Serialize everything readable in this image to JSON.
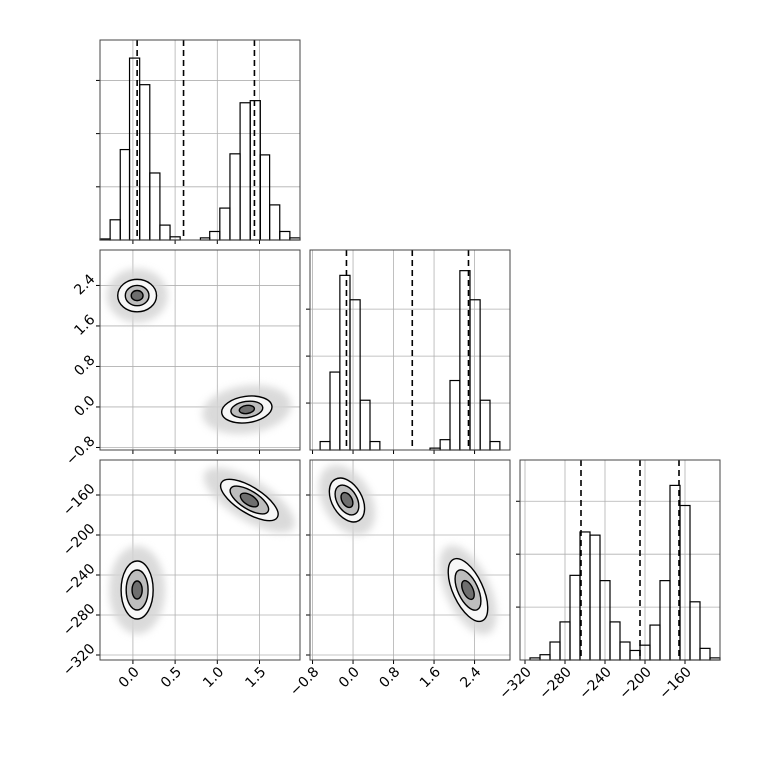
{
  "chart_data": {
    "type": "corner",
    "grid": true,
    "line_color": "#000000",
    "grid_color": "#b0b0b0",
    "level_colors": [
      "#d4d4d4",
      "#f7f7f7",
      "#bdbdbd",
      "#6e6e6e"
    ],
    "params": [
      {
        "lim": [
          -0.39,
          1.98
        ],
        "ticks": [
          {
            "value": 0,
            "label": "0.0"
          },
          0.5,
          {
            "value": 1,
            "label": "1.0"
          },
          1.5
        ],
        "bins": [
          -0.39,
          -0.27,
          -0.15,
          -0.04,
          0.08,
          0.2,
          0.32,
          0.44,
          0.56,
          0.68,
          0.8,
          0.91,
          1.03,
          1.15,
          1.27,
          1.39,
          1.51,
          1.62,
          1.74,
          1.86,
          1.98
        ],
        "counts": [
          1,
          19,
          85,
          171,
          146,
          63,
          14,
          3,
          0,
          0,
          2,
          8,
          30,
          81,
          129,
          131,
          80,
          33,
          8,
          2
        ],
        "count_lim": [
          0,
          188
        ],
        "count_ticks": [
          50,
          100,
          150
        ],
        "quantiles": [
          0.05,
          0.6,
          1.44
        ]
      },
      {
        "lim": [
          -0.85,
          3.1
        ],
        "ticks": [
          {
            "value": -0.8,
            "label": "−0.8"
          },
          {
            "value": 0,
            "label": "0.0"
          },
          0.8,
          1.6,
          2.4
        ],
        "bins": [
          -0.85,
          -0.65,
          -0.455,
          -0.26,
          -0.06,
          0.14,
          0.335,
          0.53,
          0.73,
          0.93,
          1.125,
          1.32,
          1.52,
          1.72,
          1.915,
          2.11,
          2.31,
          2.51,
          2.705,
          2.9,
          3.1
        ],
        "counts": [
          0,
          9,
          83,
          186,
          160,
          53,
          9,
          0,
          0,
          0,
          0,
          0,
          2,
          11,
          74,
          191,
          160,
          53,
          9,
          0
        ],
        "count_lim": [
          0,
          213
        ],
        "count_ticks": [
          50,
          100,
          150
        ],
        "quantiles": [
          -0.13,
          1.17,
          2.28
        ]
      },
      {
        "lim": [
          -325,
          -125
        ],
        "ticks": [
          {
            "value": -320,
            "label": "−320"
          },
          {
            "value": -280,
            "label": "−280"
          },
          {
            "value": -240,
            "label": "−240"
          },
          {
            "value": -200,
            "label": "−200"
          },
          {
            "value": -160,
            "label": "−160"
          }
        ],
        "bins": [
          -325,
          -315,
          -305,
          -295,
          -285,
          -275,
          -265,
          -255,
          -245,
          -235,
          -225,
          -215,
          -205,
          -195,
          -185,
          -175,
          -165,
          -155,
          -145,
          -135,
          -125
        ],
        "counts": [
          0,
          2,
          5,
          17,
          36,
          80,
          121,
          118,
          75,
          36,
          17,
          9,
          14,
          33,
          75,
          165,
          146,
          55,
          11,
          2
        ],
        "count_lim": [
          0,
          189
        ],
        "count_ticks": [
          50,
          100,
          150
        ],
        "quantiles": [
          -264,
          -205,
          -166
        ]
      }
    ],
    "pairs": [
      {
        "clusters": [
          {
            "x": 0.05,
            "y": 2.2,
            "angle": 0,
            "rx": [
              0.36,
              0.23,
              0.14,
              0.07
            ],
            "ry": [
              0.53,
              0.32,
              0.2,
              0.1
            ]
          },
          {
            "x": 1.35,
            "y": -0.05,
            "angle": -8,
            "rx": [
              0.53,
              0.3,
              0.19,
              0.09
            ],
            "ry": [
              0.47,
              0.26,
              0.16,
              0.08
            ]
          }
        ]
      },
      {
        "clusters": [
          {
            "x": 1.38,
            "y": -165,
            "angle": 32,
            "rx": [
              0.62,
              0.39,
              0.26,
              0.12
            ],
            "ry": [
              20,
              13,
              9,
              5
            ]
          },
          {
            "x": 0.05,
            "y": -255,
            "angle": 0,
            "rx": [
              0.33,
              0.19,
              0.13,
              0.06
            ],
            "ry": [
              44,
              29,
              20,
              9
            ]
          }
        ]
      },
      {
        "clusters": [
          {
            "x": -0.12,
            "y": -165,
            "angle": 60,
            "rx": [
              0.75,
              0.47,
              0.32,
              0.16
            ],
            "ry": [
              24,
              15,
              10,
              5
            ]
          },
          {
            "x": 2.27,
            "y": -255,
            "angle": 65,
            "rx": [
              0.95,
              0.67,
              0.43,
              0.2
            ],
            "ry": [
              22,
              15,
              10,
              5
            ]
          }
        ]
      }
    ]
  }
}
